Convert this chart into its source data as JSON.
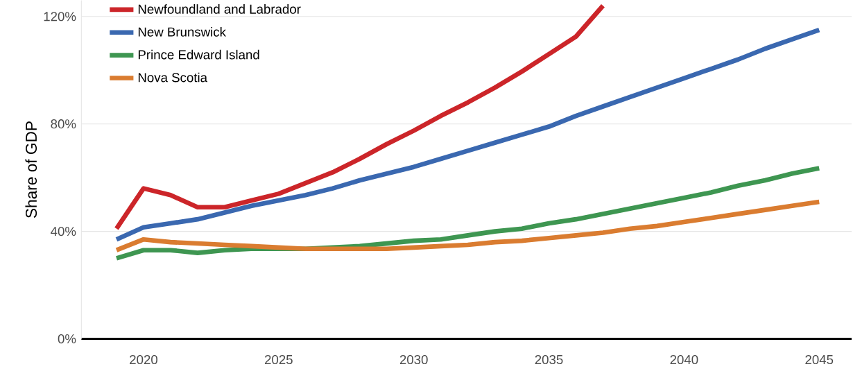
{
  "chart_data": {
    "type": "line",
    "ylabel": "Share of GDP",
    "x": [
      2019,
      2020,
      2021,
      2022,
      2023,
      2024,
      2025,
      2026,
      2027,
      2028,
      2029,
      2030,
      2031,
      2032,
      2033,
      2034,
      2035,
      2036,
      2037,
      2038,
      2039,
      2040,
      2041,
      2042,
      2043,
      2044,
      2045
    ],
    "series": [
      {
        "name": "Newfoundland and Labrador",
        "color": "#cc2529",
        "values": [
          41,
          56,
          53.5,
          49,
          49,
          51.5,
          54,
          58,
          62,
          67,
          72.5,
          77.5,
          83,
          88,
          93.5,
          99.5,
          106,
          112.5,
          124,
          null,
          null,
          null,
          null,
          null,
          null,
          null,
          null
        ]
      },
      {
        "name": "New Brunswick",
        "color": "#3a68b0",
        "values": [
          37,
          41.5,
          43,
          44.5,
          47,
          49.5,
          51.5,
          53.5,
          56,
          59,
          61.5,
          64,
          67,
          70,
          73,
          76,
          79,
          83,
          86.5,
          90,
          93.5,
          97,
          100.5,
          104,
          108,
          111.5,
          115
        ]
      },
      {
        "name": "Prince Edward Island",
        "color": "#3e9651",
        "values": [
          30,
          33,
          33,
          32,
          33,
          33.5,
          33.5,
          33.5,
          34,
          34.5,
          35.5,
          36.5,
          37,
          38.5,
          40,
          41,
          43,
          44.5,
          46.5,
          48.5,
          50.5,
          52.5,
          54.5,
          57,
          59,
          61.5,
          63.5
        ]
      },
      {
        "name": "Nova Scotia",
        "color": "#da7c30",
        "values": [
          33,
          37,
          36,
          35.5,
          35,
          34.5,
          34,
          33.5,
          33.5,
          33.5,
          33.5,
          34,
          34.5,
          35,
          36,
          36.5,
          37.5,
          38.5,
          39.5,
          41,
          42,
          43.5,
          45,
          46.5,
          48,
          49.5,
          51
        ]
      }
    ],
    "xlim": [
      2017.7,
      2046.2
    ],
    "ylim": [
      0,
      126
    ],
    "xticks": [
      2020,
      2025,
      2030,
      2035,
      2040,
      2045
    ],
    "yticks": [
      {
        "value": 0,
        "label": "0%"
      },
      {
        "value": 40,
        "label": "40%"
      },
      {
        "value": 80,
        "label": "80%"
      },
      {
        "value": 120,
        "label": "120%"
      }
    ],
    "grid": "y",
    "legend": "top left",
    "marker": "none",
    "line_style": "solid"
  }
}
